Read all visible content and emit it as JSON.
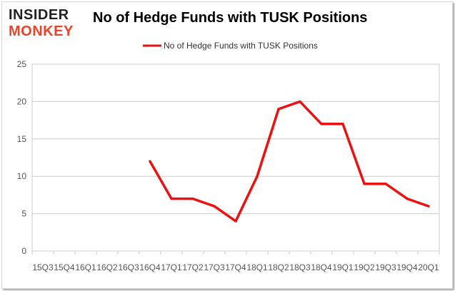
{
  "brand": {
    "logo_line1": "INSIDER",
    "logo_line2": "MONKEY"
  },
  "chart_data": {
    "type": "line",
    "title": "No of Hedge Funds with TUSK Positions",
    "xlabel": "",
    "ylabel": "",
    "categories": [
      "15Q3",
      "15Q4",
      "16Q1",
      "16Q2",
      "16Q3",
      "16Q4",
      "17Q1",
      "17Q2",
      "17Q3",
      "17Q4",
      "18Q1",
      "18Q2",
      "18Q3",
      "18Q4",
      "19Q1",
      "19Q2",
      "19Q3",
      "19Q4",
      "20Q1"
    ],
    "series": [
      {
        "name": "No of Hedge Funds with TUSK Positions",
        "color": "#ee1111",
        "values": [
          null,
          null,
          null,
          null,
          null,
          12,
          7,
          7,
          6,
          4,
          10,
          19,
          20,
          17,
          17,
          9,
          9,
          7,
          6
        ]
      }
    ],
    "ylim": [
      0,
      25
    ],
    "yticks": [
      0,
      5,
      10,
      15,
      20,
      25
    ],
    "grid": true,
    "legend": "top-center"
  }
}
